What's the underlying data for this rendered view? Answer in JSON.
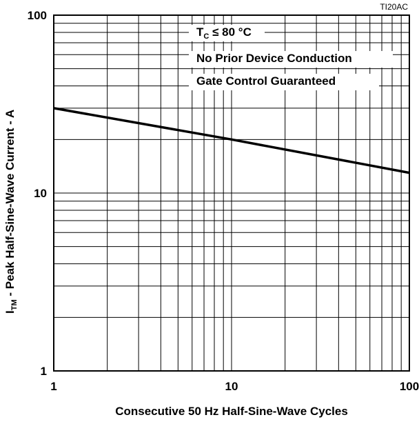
{
  "chart_data": {
    "type": "line",
    "scale": "log-log",
    "minor_grid": true,
    "code": "TI20AC",
    "xlabel": "Consecutive 50 Hz Half-Sine-Wave Cycles",
    "ylabel": {
      "main": "I",
      "sub": "TM",
      "rest": " - Peak Half-Sine-Wave Current - A"
    },
    "annotations": [
      {
        "main": "T",
        "sub": "C",
        "rest": " ≤ 80 °C"
      },
      "No Prior Device Conduction",
      "Gate Control Guaranteed"
    ],
    "xlim": [
      1,
      100
    ],
    "ylim": [
      1,
      100
    ],
    "xticks": [
      1,
      10,
      100
    ],
    "yticks": [
      1,
      10,
      100
    ],
    "series": [
      {
        "name": "ITM",
        "color": "#000000",
        "x": [
          1,
          10,
          100
        ],
        "values": [
          30,
          20,
          13
        ]
      }
    ]
  }
}
